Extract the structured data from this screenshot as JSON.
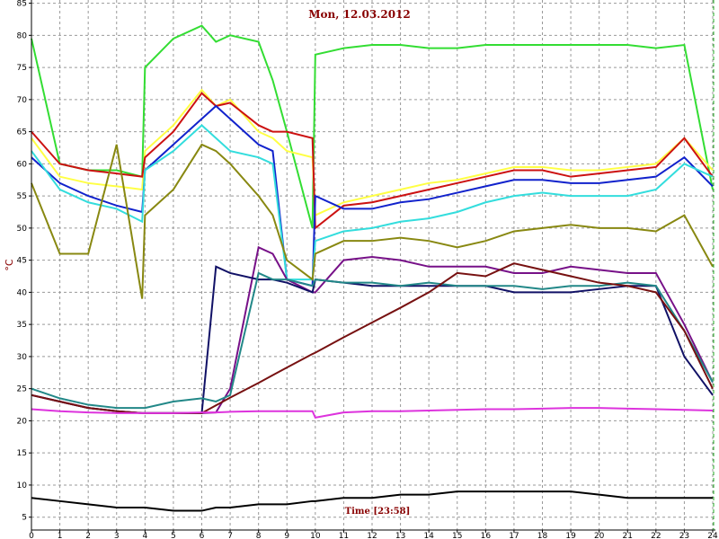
{
  "chart_data": {
    "type": "line",
    "title": "Mon, 12.03.2012",
    "y_label": "°C",
    "x_label": "Time [23:58]",
    "x": [
      0,
      1,
      2,
      3,
      3.9,
      4,
      5,
      6,
      6.5,
      7,
      8,
      8.5,
      9,
      9.9,
      10,
      11,
      12,
      13,
      14,
      15,
      16,
      17,
      18,
      19,
      20,
      21,
      22,
      23,
      24
    ],
    "xlim": [
      0,
      24
    ],
    "xticks": [
      0,
      1,
      2,
      3,
      4,
      5,
      6,
      7,
      8,
      9,
      10,
      11,
      12,
      13,
      14,
      15,
      16,
      17,
      18,
      19,
      20,
      21,
      22,
      23,
      24
    ],
    "ylim": [
      3,
      85.5
    ],
    "yticks": [
      5,
      10,
      15,
      20,
      25,
      30,
      35,
      40,
      45,
      50,
      55,
      60,
      65,
      70,
      75,
      80,
      85
    ],
    "grid": true,
    "series": [
      {
        "color": "#33dd33",
        "values": [
          79.5,
          60,
          59,
          59,
          58,
          75,
          79.5,
          81.5,
          79,
          80,
          79,
          73,
          65,
          50,
          77,
          78,
          78.5,
          78.5,
          78,
          78,
          78.5,
          78.5,
          78.5,
          78.5,
          78.5,
          78.5,
          78,
          78.5,
          56
        ]
      },
      {
        "color": "#ffff44",
        "values": [
          64,
          58,
          57,
          56.5,
          56,
          62,
          66,
          71.5,
          69,
          70,
          65,
          64,
          62,
          61,
          52,
          54,
          55,
          56,
          57,
          57.5,
          58.5,
          59.5,
          59.5,
          59,
          59,
          59.5,
          60,
          64,
          59
        ]
      },
      {
        "color": "#cc1111",
        "values": [
          65,
          60,
          59,
          58.5,
          58,
          61,
          65,
          71,
          69,
          69.5,
          66,
          65,
          65,
          64,
          50,
          53.5,
          54,
          55,
          56,
          57,
          58,
          59,
          59,
          58,
          58.5,
          59,
          59.5,
          64,
          58
        ]
      },
      {
        "color": "#1122cc",
        "values": [
          61,
          57,
          55,
          53.5,
          52.5,
          59,
          63,
          67,
          69,
          67,
          63,
          62,
          42,
          41,
          55,
          53,
          53,
          54,
          54.5,
          55.5,
          56.5,
          57.5,
          57.5,
          57,
          57,
          57.5,
          58,
          61,
          56.5
        ]
      },
      {
        "color": "#33dddd",
        "values": [
          62,
          56,
          54,
          53,
          51,
          59,
          62,
          66,
          64,
          62,
          61,
          60,
          42,
          42,
          48,
          49.5,
          50,
          51,
          51.5,
          52.5,
          54,
          55,
          55.5,
          55,
          55,
          55,
          56,
          60,
          58
        ]
      },
      {
        "color": "#888811",
        "values": [
          57,
          46,
          46,
          63,
          39,
          52,
          56,
          63,
          62,
          60,
          55,
          52,
          45,
          42,
          46,
          48,
          48,
          48.5,
          48,
          47,
          48,
          49.5,
          50,
          50.5,
          50,
          50,
          49.5,
          52,
          44
        ]
      },
      {
        "color": "#771188",
        "values": [
          24,
          23,
          22,
          21.5,
          21.2,
          21.2,
          21.2,
          21.2,
          21.3,
          25,
          47,
          46,
          42,
          40,
          40,
          45,
          45.5,
          45,
          44,
          44,
          44,
          43,
          43,
          44,
          43.5,
          43,
          43,
          35,
          26
        ]
      },
      {
        "color": "#111166",
        "values": [
          24,
          23,
          22,
          21.5,
          21.2,
          21.2,
          21.2,
          21.2,
          44,
          43,
          42,
          42,
          41.5,
          40,
          42,
          41.5,
          41,
          41,
          41,
          41,
          41,
          40,
          40,
          40,
          40.5,
          41,
          41,
          30,
          24
        ]
      },
      {
        "color": "#228888",
        "values": [
          25,
          23.5,
          22.5,
          22,
          22,
          22,
          23,
          23.5,
          23,
          24,
          43,
          42,
          42,
          41,
          42,
          41.5,
          41.5,
          41,
          41.5,
          41,
          41,
          41,
          40.5,
          41,
          41,
          41.5,
          41,
          34,
          26
        ]
      },
      {
        "color": "#771111",
        "values": [
          24,
          23,
          22,
          21.5,
          21.2,
          21.2,
          21.2,
          21.2,
          22.4,
          23.6,
          25.9,
          27.1,
          28.3,
          30.4,
          30.6,
          33,
          35.3,
          37.6,
          40,
          43,
          42.5,
          44.5,
          43.5,
          42.5,
          41.5,
          41,
          40,
          34,
          25
        ]
      },
      {
        "color": "#dd33dd",
        "values": [
          21.8,
          21.5,
          21.3,
          21.2,
          21.2,
          21.2,
          21.2,
          21.3,
          21.3,
          21.4,
          21.5,
          21.5,
          21.5,
          21.5,
          20.5,
          21.3,
          21.5,
          21.5,
          21.6,
          21.7,
          21.8,
          21.8,
          21.9,
          22,
          22,
          21.9,
          21.8,
          21.7,
          21.6
        ]
      },
      {
        "color": "#000000",
        "values": [
          8,
          7.5,
          7,
          6.5,
          6.5,
          6.5,
          6,
          6,
          6.5,
          6.5,
          7,
          7,
          7,
          7.5,
          7.5,
          8,
          8,
          8.5,
          8.5,
          9,
          9,
          9,
          9,
          9,
          8.5,
          8,
          8,
          8,
          8
        ]
      }
    ]
  }
}
